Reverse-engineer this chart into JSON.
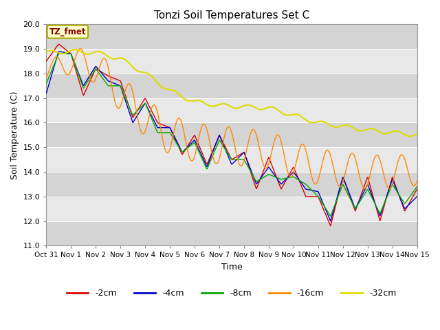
{
  "title": "Tonzi Soil Temperatures Set C",
  "ylabel": "Soil Temperature (C)",
  "xlabel": "Time",
  "ylim": [
    11.0,
    20.0
  ],
  "yticks": [
    11.0,
    12.0,
    13.0,
    14.0,
    15.0,
    16.0,
    17.0,
    18.0,
    19.0,
    20.0
  ],
  "annotation": "TZ_fmet",
  "legend_labels": [
    "-2cm",
    "-4cm",
    "-8cm",
    "-16cm",
    "-32cm"
  ],
  "line_colors": [
    "#dd0000",
    "#0000cc",
    "#00aa00",
    "#ff8800",
    "#dddd00"
  ],
  "xtick_labels": [
    "Oct 31",
    "Nov 1",
    "Nov 2",
    "Nov 3",
    "Nov 4",
    "Nov 5",
    "Nov 6",
    "Nov 7",
    "Nov 8",
    "Nov 9",
    "Nov 10",
    "Nov 11",
    "Nov 12",
    "Nov 13",
    "Nov 14",
    "Nov 15"
  ],
  "figsize": [
    6.4,
    4.8
  ],
  "dpi": 100
}
